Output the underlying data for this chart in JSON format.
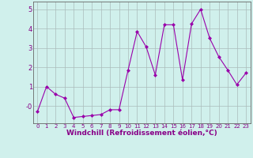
{
  "x": [
    0,
    1,
    2,
    3,
    4,
    5,
    6,
    7,
    8,
    9,
    10,
    11,
    12,
    13,
    14,
    15,
    16,
    17,
    18,
    19,
    20,
    21,
    22,
    23
  ],
  "y": [
    -0.3,
    1.0,
    0.6,
    0.4,
    -0.6,
    -0.55,
    -0.5,
    -0.45,
    -0.2,
    -0.2,
    1.85,
    3.85,
    3.05,
    1.6,
    4.2,
    4.2,
    1.35,
    4.25,
    5.0,
    3.5,
    2.55,
    1.85,
    1.1,
    1.7
  ],
  "line_color": "#9900aa",
  "marker": "D",
  "marker_size": 2,
  "bg_color": "#d0f0ec",
  "grid_color": "#aabbbb",
  "xlabel": "Windchill (Refroidissement éolien,°C)",
  "xlabel_fontsize": 6.5,
  "ylim": [
    -0.9,
    5.4
  ],
  "xlim": [
    -0.5,
    23.5
  ],
  "ytick_vals": [
    0,
    1,
    2,
    3,
    4,
    5
  ],
  "ytick_labels": [
    "-0",
    "1",
    "2",
    "3",
    "4",
    "5"
  ],
  "xticks": [
    0,
    1,
    2,
    3,
    4,
    5,
    6,
    7,
    8,
    9,
    10,
    11,
    12,
    13,
    14,
    15,
    16,
    17,
    18,
    19,
    20,
    21,
    22,
    23
  ],
  "tick_color": "#880088",
  "tick_fontsize": 5,
  "spine_color": "#666666",
  "linewidth": 0.8
}
